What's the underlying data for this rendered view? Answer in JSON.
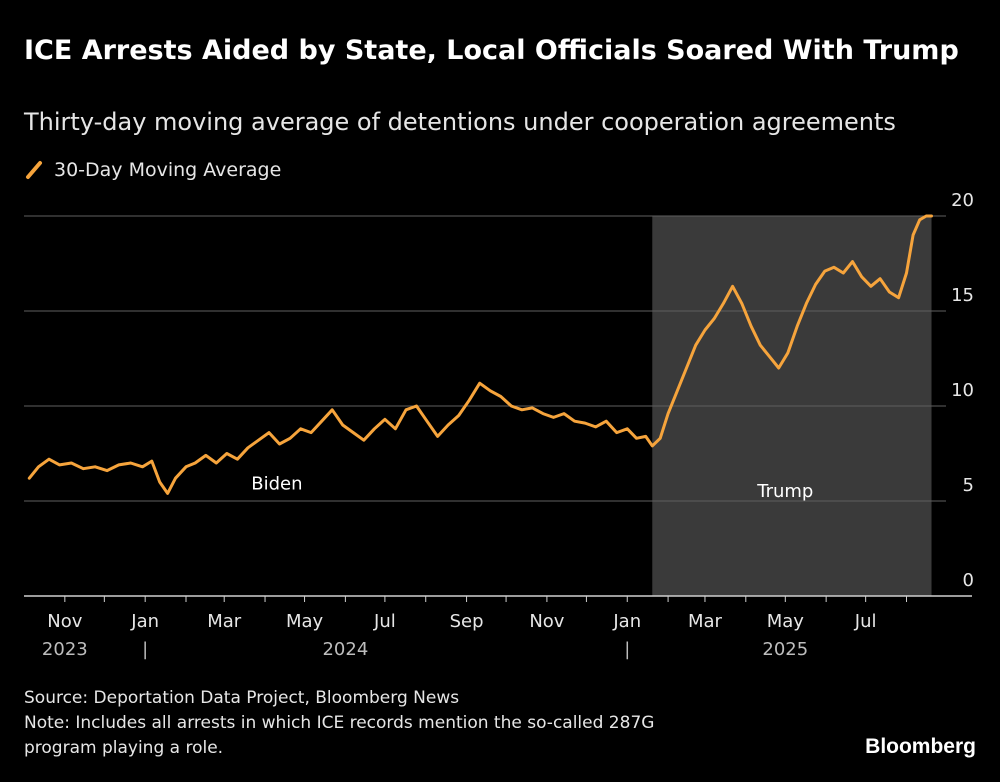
{
  "title": "ICE Arrests Aided by State, Local Officials Soared With Trump",
  "subtitle": "Thirty-day moving average of detentions under cooperation agreements",
  "source": "Source: Deportation Data Project, Bloomberg News",
  "note_line1": "Note: Includes all arrests in which ICE records mention the so-called 287G",
  "note_line2": "program playing a role.",
  "brand": "Bloomberg",
  "colors": {
    "background": "#000000",
    "line": "#f6a43c",
    "shade": "#3a3a3a",
    "grid": "#5f5f5f",
    "text": "#e6e6e6"
  },
  "chart_data": {
    "type": "line",
    "title": "ICE Arrests Aided by State, Local Officials Soared With Trump",
    "ylim": [
      0,
      20
    ],
    "yticks": [
      0,
      5,
      10,
      15,
      20
    ],
    "ytick_labels": [
      "0",
      "5",
      "10",
      "15",
      "20"
    ],
    "xlim": [
      "2023-10-01",
      "2025-08-31"
    ],
    "month_ticks": [
      "Nov",
      "Jan",
      "Mar",
      "May",
      "Jul",
      "Sep",
      "Nov",
      "Jan",
      "Mar",
      "May",
      "Jul"
    ],
    "month_tick_dates": [
      "2023-11-01",
      "2024-01-01",
      "2024-03-01",
      "2024-05-01",
      "2024-07-01",
      "2024-09-01",
      "2024-11-01",
      "2025-01-01",
      "2025-03-01",
      "2025-05-01",
      "2025-07-01"
    ],
    "year_labels": [
      {
        "label": "2023",
        "date": "2023-11-01"
      },
      {
        "label": "2024",
        "date": "2024-06-01"
      },
      {
        "label": "2025",
        "date": "2025-05-01"
      }
    ],
    "year_separators": [
      "2024-01-01",
      "2025-01-01"
    ],
    "year_separator_glyph": "|",
    "legend": [
      "30-Day Moving Average"
    ],
    "regions": [
      {
        "label": "Biden",
        "start": "2023-10-01",
        "end": "2025-01-20",
        "shaded": false,
        "label_date": "2024-04-10",
        "label_value": 5.6
      },
      {
        "label": "Trump",
        "start": "2025-01-20",
        "end": "2025-08-20",
        "shaded": true,
        "label_date": "2025-05-01",
        "label_value": 5.2
      }
    ],
    "series": [
      {
        "name": "30-Day Moving Average",
        "x": [
          "2023-10-05",
          "2023-10-12",
          "2023-10-20",
          "2023-10-28",
          "2023-11-06",
          "2023-11-15",
          "2023-11-24",
          "2023-12-03",
          "2023-12-12",
          "2023-12-21",
          "2023-12-30",
          "2024-01-06",
          "2024-01-12",
          "2024-01-18",
          "2024-01-24",
          "2024-02-01",
          "2024-02-08",
          "2024-02-16",
          "2024-02-24",
          "2024-03-03",
          "2024-03-11",
          "2024-03-19",
          "2024-03-27",
          "2024-04-04",
          "2024-04-12",
          "2024-04-20",
          "2024-04-28",
          "2024-05-06",
          "2024-05-14",
          "2024-05-22",
          "2024-05-30",
          "2024-06-07",
          "2024-06-15",
          "2024-06-23",
          "2024-07-01",
          "2024-07-09",
          "2024-07-17",
          "2024-07-25",
          "2024-08-02",
          "2024-08-10",
          "2024-08-18",
          "2024-08-26",
          "2024-09-03",
          "2024-09-11",
          "2024-09-19",
          "2024-09-27",
          "2024-10-05",
          "2024-10-13",
          "2024-10-21",
          "2024-10-29",
          "2024-11-06",
          "2024-11-14",
          "2024-11-22",
          "2024-11-30",
          "2024-12-08",
          "2024-12-16",
          "2024-12-24",
          "2025-01-01",
          "2025-01-08",
          "2025-01-15",
          "2025-01-20",
          "2025-01-26",
          "2025-02-01",
          "2025-02-08",
          "2025-02-15",
          "2025-02-22",
          "2025-03-01",
          "2025-03-08",
          "2025-03-15",
          "2025-03-22",
          "2025-03-29",
          "2025-04-05",
          "2025-04-12",
          "2025-04-19",
          "2025-04-26",
          "2025-05-03",
          "2025-05-10",
          "2025-05-17",
          "2025-05-24",
          "2025-05-31",
          "2025-06-07",
          "2025-06-14",
          "2025-06-21",
          "2025-06-28",
          "2025-07-05",
          "2025-07-12",
          "2025-07-19",
          "2025-07-26",
          "2025-08-01",
          "2025-08-06",
          "2025-08-11",
          "2025-08-16",
          "2025-08-20"
        ],
        "values": [
          6.2,
          6.8,
          7.2,
          6.9,
          7.0,
          6.7,
          6.8,
          6.6,
          6.9,
          7.0,
          6.8,
          7.1,
          6.0,
          5.4,
          6.2,
          6.8,
          7.0,
          7.4,
          7.0,
          7.5,
          7.2,
          7.8,
          8.2,
          8.6,
          8.0,
          8.3,
          8.8,
          8.6,
          9.2,
          9.8,
          9.0,
          8.6,
          8.2,
          8.8,
          9.3,
          8.8,
          9.8,
          10.0,
          9.2,
          8.4,
          9.0,
          9.5,
          10.3,
          11.2,
          10.8,
          10.5,
          10.0,
          9.8,
          9.9,
          9.6,
          9.4,
          9.6,
          9.2,
          9.1,
          8.9,
          9.2,
          8.6,
          8.8,
          8.3,
          8.4,
          7.9,
          8.3,
          9.6,
          10.8,
          12.0,
          13.2,
          14.0,
          14.6,
          15.4,
          16.3,
          15.4,
          14.2,
          13.2,
          12.6,
          12.0,
          12.8,
          14.2,
          15.4,
          16.4,
          17.1,
          17.3,
          17.0,
          17.6,
          16.8,
          16.3,
          16.7,
          16.0,
          15.7,
          17.0,
          19.0,
          19.8,
          20.0,
          20.0
        ]
      }
    ]
  }
}
